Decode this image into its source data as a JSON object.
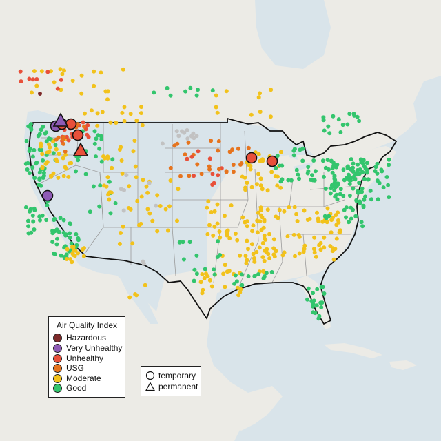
{
  "colors": {
    "water": "#d9e4ea",
    "land": "#ecebe6",
    "land_shadow": "#e3e1dc",
    "country_border": "#111111",
    "state_border": "#9a9a9a",
    "no_data": "#c2c2c2"
  },
  "legend": {
    "title": "Air Quality Index",
    "categories": [
      {
        "label": "Hazardous",
        "color": "#7e2a2a"
      },
      {
        "label": "Very Unhealthy",
        "color": "#8e5bb5"
      },
      {
        "label": "Unhealthy",
        "color": "#e8503a"
      },
      {
        "label": "USG",
        "color": "#e6741e"
      },
      {
        "label": "Moderate",
        "color": "#f2c21b"
      },
      {
        "label": "Good",
        "color": "#33c56d"
      }
    ]
  },
  "site_types": {
    "temporary": {
      "label": "temporary",
      "icon": "circle-outline-icon"
    },
    "permanent": {
      "label": "permanent",
      "icon": "triangle-outline-icon"
    }
  }
}
